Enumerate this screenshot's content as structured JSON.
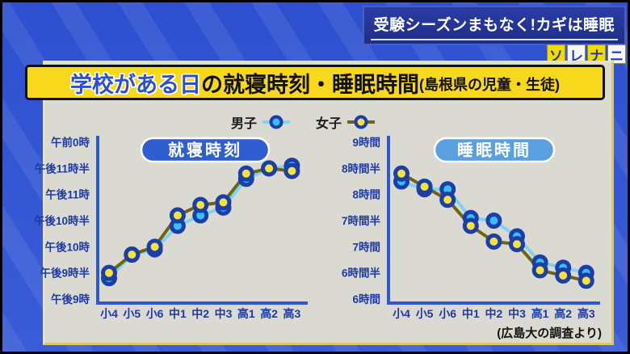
{
  "broadcast": {
    "headline": "受験シーズンまもなく!カギは睡眠",
    "logo_letters": [
      "ソ",
      "レ",
      "ナ",
      "ニ"
    ],
    "source_note": "(広島大の調査より)"
  },
  "title": {
    "highlight": "学校がある日",
    "main": "の就寝時刻・睡眠時間",
    "subtitle": "(島根県の児童・生徒)"
  },
  "colors": {
    "bg_blue": "#2d50d0",
    "headline_bg": "#1e2d86",
    "headline_text": "#ffffff",
    "logo_yellow": "#f2dc00",
    "logo_blue": "#2438a8",
    "panel_bg": "#dadad3",
    "panel_border": "#d9c95e",
    "banner_yellow": "#f8d81c",
    "highlight_blue": "#2a50d0",
    "axis": "#2b5ace",
    "tick_label": "#1e3a9e",
    "boys_line": "#7fd2f0",
    "boys_fill": "#38bff0",
    "girls_line": "#6f6414",
    "girls_fill": "#f6e23c",
    "marker_ring": "#1c3ea8",
    "pill_left": "#2e5ed0",
    "pill_right": "#58a0e0"
  },
  "chart_data": [
    {
      "type": "line",
      "title": "就寝時刻",
      "categories": [
        "小4",
        "小5",
        "小6",
        "中1",
        "中2",
        "中3",
        "高1",
        "高2",
        "高3"
      ],
      "series": [
        {
          "name": "男子",
          "values": [
            21.4,
            21.85,
            21.95,
            22.4,
            22.6,
            22.75,
            23.3,
            23.5,
            23.55
          ]
        },
        {
          "name": "女子",
          "values": [
            21.5,
            21.85,
            22.0,
            22.6,
            22.8,
            22.85,
            23.4,
            23.5,
            23.45
          ]
        }
      ],
      "y_ticks": [
        {
          "value": 24.0,
          "label": "午前0時"
        },
        {
          "value": 23.5,
          "label": "午後11時半"
        },
        {
          "value": 23.0,
          "label": "午後11時"
        },
        {
          "value": 22.5,
          "label": "午後10時半"
        },
        {
          "value": 22.0,
          "label": "午後10時"
        },
        {
          "value": 21.5,
          "label": "午後9時半"
        },
        {
          "value": 21.0,
          "label": "午後9時"
        }
      ],
      "ylim": [
        21,
        24
      ],
      "unit": "clock time (24h decimal hours)",
      "grid": false,
      "legend_position": "top"
    },
    {
      "type": "line",
      "title": "睡眠時間",
      "categories": [
        "小4",
        "小5",
        "小6",
        "中1",
        "中2",
        "中3",
        "高1",
        "高2",
        "高3"
      ],
      "series": [
        {
          "name": "男子",
          "values": [
            8.25,
            8.1,
            8.1,
            7.55,
            7.5,
            7.2,
            6.7,
            6.6,
            6.5
          ]
        },
        {
          "name": "女子",
          "values": [
            8.4,
            8.15,
            7.9,
            7.4,
            7.1,
            7.05,
            6.55,
            6.45,
            6.35
          ]
        }
      ],
      "y_ticks": [
        {
          "value": 9.0,
          "label": "9時間"
        },
        {
          "value": 8.5,
          "label": "8時間半"
        },
        {
          "value": 8.0,
          "label": "8時間"
        },
        {
          "value": 7.5,
          "label": "7時間半"
        },
        {
          "value": 7.0,
          "label": "7時間"
        },
        {
          "value": 6.5,
          "label": "6時間半"
        },
        {
          "value": 6.0,
          "label": "6時間"
        }
      ],
      "ylim": [
        6,
        9
      ],
      "unit": "hours of sleep",
      "grid": false,
      "legend_position": "top"
    }
  ]
}
